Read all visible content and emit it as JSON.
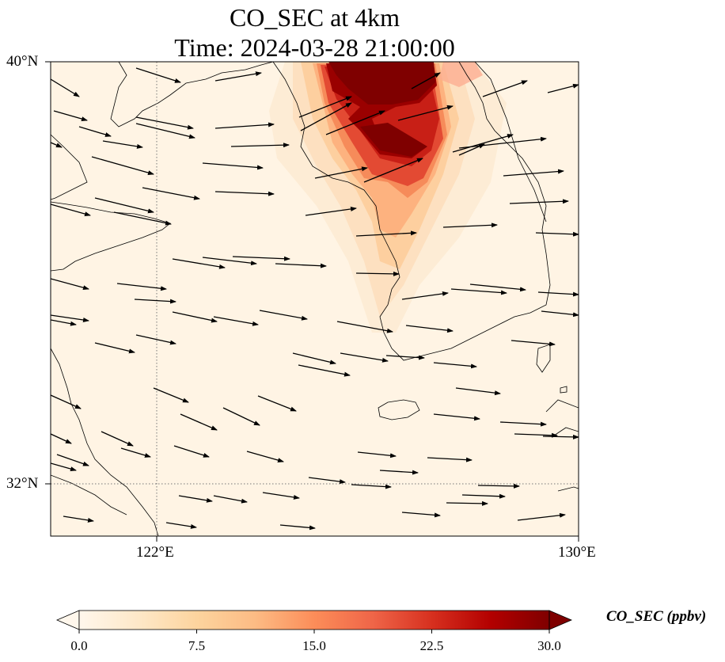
{
  "title": {
    "line1": "CO_SEC at 4km",
    "line2": "Time: 2024-03-28 21:00:00"
  },
  "map": {
    "lon_range": [
      118.7,
      130.0
    ],
    "lat_range": [
      31.0,
      40.0
    ],
    "lat_labels": [
      "40°N",
      "32°N"
    ],
    "lon_labels": [
      "122°E",
      "130°E"
    ],
    "gridlines": {
      "lon": 122,
      "lat": 32,
      "style": "dotted"
    },
    "plume_color": "#7f0000",
    "background_color": "#fff4e4"
  },
  "colorbar": {
    "label": "CO_SEC (ppbv)",
    "ticks": [
      "0.0",
      "7.5",
      "15.0",
      "22.5",
      "30.0"
    ],
    "range": [
      0,
      30
    ],
    "extend": "both",
    "colormap": "OrRd",
    "colors": [
      "#fff7ec",
      "#fee8c8",
      "#fdd49e",
      "#fdbb84",
      "#fc8d59",
      "#ef6548",
      "#d7301f",
      "#b30000",
      "#7f0000"
    ]
  }
}
